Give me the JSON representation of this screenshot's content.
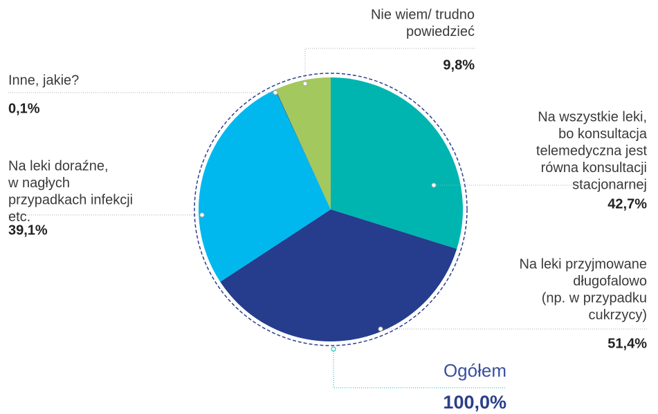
{
  "chart_data": {
    "type": "pie",
    "labels": [
      [
        "Na wszystkie leki,",
        "bo konsultacja",
        "telemedyczna jest",
        "równa konsultacji",
        "stacjonarnej"
      ],
      [
        "Na leki przyjmowane",
        "długofalowo",
        "(np. w przypadku",
        "cukrzycy)"
      ],
      [
        "Na leki doraźne,",
        "w nagłych",
        "przypadkach infekcji",
        "etc."
      ],
      [
        "Inne, jakie?"
      ],
      [
        "Nie wiem/ trudno",
        "powiedzieć"
      ]
    ],
    "values": [
      42.7,
      51.4,
      39.1,
      0.1,
      9.8
    ],
    "value_labels": [
      "42,7%",
      "51,4%",
      "39,1%",
      "0,1%",
      "9,8%"
    ],
    "colors": [
      "#00b5b0",
      "#253d8c",
      "#00b8ee",
      "#1d4a6b",
      "#a3c85e"
    ],
    "total_label": "Ogółem",
    "total_value": 100,
    "total_value_label": "100,0%"
  }
}
